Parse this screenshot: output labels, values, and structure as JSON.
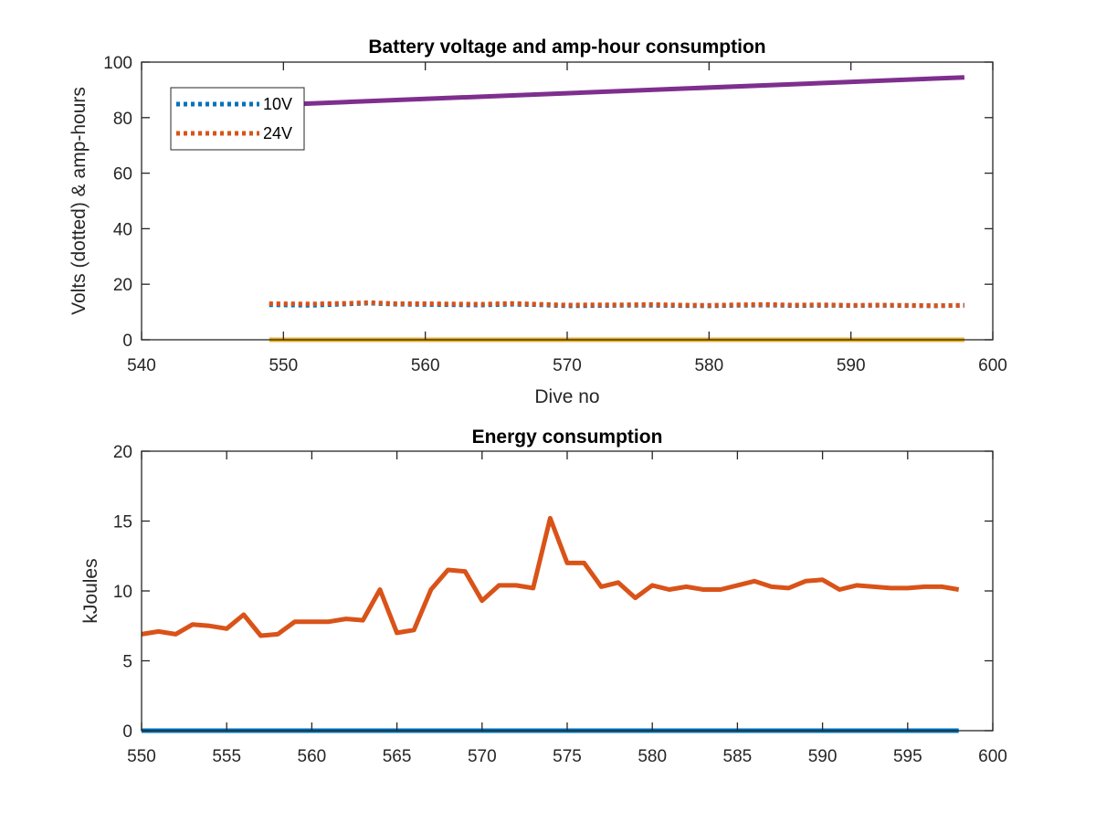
{
  "chart_data": [
    {
      "type": "line",
      "title": "Battery voltage and amp-hour consumption",
      "xlabel": "Dive no",
      "ylabel": "Volts (dotted) & amp-hours",
      "xlim": [
        540,
        600
      ],
      "ylim": [
        0,
        100
      ],
      "xticks": [
        540,
        550,
        560,
        570,
        580,
        590,
        600
      ],
      "yticks": [
        0,
        20,
        40,
        60,
        80,
        100
      ],
      "legend_placement": "top-left",
      "series": [
        {
          "name": "10V",
          "style": "dotted",
          "color": "#0072BD",
          "x": [
            549,
            552,
            555,
            556,
            558,
            560,
            562,
            564,
            566,
            568,
            570,
            572,
            574,
            576,
            578,
            580,
            582,
            584,
            586,
            588,
            590,
            592,
            594,
            596,
            598
          ],
          "y": [
            12.6,
            12.4,
            13.0,
            13.2,
            12.8,
            12.7,
            12.6,
            12.5,
            12.8,
            12.6,
            12.2,
            12.3,
            12.4,
            12.4,
            12.3,
            12.2,
            12.4,
            12.5,
            12.3,
            12.4,
            12.3,
            12.4,
            12.3,
            12.2,
            12.4
          ]
        },
        {
          "name": "24V",
          "style": "dotted",
          "color": "#D95319",
          "x": [
            549,
            552,
            555,
            556,
            558,
            560,
            562,
            564,
            566,
            568,
            570,
            572,
            574,
            576,
            578,
            580,
            582,
            584,
            586,
            588,
            590,
            592,
            594,
            596,
            598
          ],
          "y": [
            13.0,
            12.9,
            13.2,
            13.4,
            13.0,
            13.0,
            12.9,
            12.8,
            13.1,
            12.8,
            12.5,
            12.6,
            12.6,
            12.7,
            12.5,
            12.4,
            12.6,
            12.7,
            12.5,
            12.6,
            12.4,
            12.5,
            12.4,
            12.3,
            12.4
          ]
        },
        {
          "style": "solid",
          "color": "#7E2F8E",
          "x": [
            549,
            598
          ],
          "y": [
            84.5,
            94.5
          ]
        },
        {
          "style": "solid",
          "color": "#EDB120",
          "x": [
            549,
            598
          ],
          "y": [
            0,
            0
          ]
        }
      ]
    },
    {
      "type": "line",
      "title": "Energy consumption",
      "xlabel": "",
      "ylabel": "kJoules",
      "xlim": [
        550,
        600
      ],
      "ylim": [
        0,
        20
      ],
      "xticks": [
        550,
        555,
        560,
        565,
        570,
        575,
        580,
        585,
        590,
        595,
        600
      ],
      "yticks": [
        0,
        5,
        10,
        15,
        20
      ],
      "series": [
        {
          "style": "solid",
          "color": "#D95319",
          "x": [
            550,
            551,
            552,
            553,
            554,
            555,
            556,
            557,
            558,
            559,
            560,
            561,
            562,
            563,
            564,
            565,
            566,
            567,
            568,
            569,
            570,
            571,
            572,
            573,
            574,
            575,
            576,
            577,
            578,
            579,
            580,
            581,
            582,
            583,
            584,
            585,
            586,
            587,
            588,
            589,
            590,
            591,
            592,
            593,
            594,
            595,
            596,
            597,
            598
          ],
          "y": [
            6.9,
            7.1,
            6.9,
            7.6,
            7.5,
            7.3,
            8.3,
            6.8,
            6.9,
            7.8,
            7.8,
            7.8,
            8.0,
            7.9,
            10.1,
            7.0,
            7.2,
            10.1,
            11.5,
            11.4,
            9.3,
            10.4,
            10.4,
            10.2,
            15.2,
            12.0,
            12.0,
            10.3,
            10.6,
            9.5,
            10.4,
            10.1,
            10.3,
            10.1,
            10.1,
            10.4,
            10.7,
            10.3,
            10.2,
            10.7,
            10.8,
            10.1,
            10.4,
            10.3,
            10.2,
            10.2,
            10.3,
            10.3,
            10.1
          ]
        },
        {
          "style": "solid",
          "color": "#0072BD",
          "x": [
            550,
            598
          ],
          "y": [
            0,
            0
          ]
        }
      ]
    }
  ]
}
